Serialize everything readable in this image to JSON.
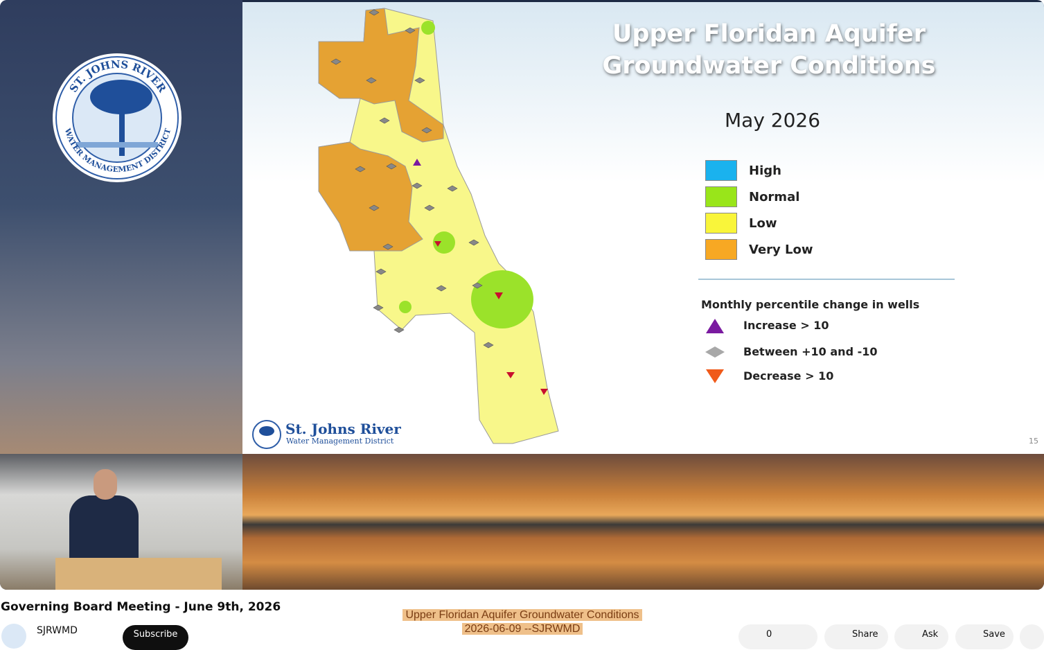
{
  "slide": {
    "title_lines": [
      "Upper Floridan Aquifer",
      "Groundwater Conditions"
    ],
    "date": "May 2026",
    "legend": [
      {
        "label": "High",
        "color": "#1ab2ee"
      },
      {
        "label": "Normal",
        "color": "#99e51a"
      },
      {
        "label": "Low",
        "color": "#f9f53a"
      },
      {
        "label": "Very Low",
        "color": "#f7a823"
      }
    ],
    "wells_title": "Monthly percentile change in wells",
    "wells": [
      "Increase > 10",
      "Between +10 and -10",
      "Decrease > 10"
    ],
    "logo_name": "St. Johns River",
    "logo_sub": "Water Management District",
    "seal_top": "ST. JOHNS RIVER",
    "seal_bottom": "WATER MANAGEMENT DISTRICT",
    "page_number": "15"
  },
  "video": {
    "title": "Governing Board Meeting - June 9th, 2026",
    "channel": "SJRWMD",
    "subscribe": "Subscribe",
    "caption": [
      "Upper Floridan Aquifer Groundwater Conditions",
      "2026-06-09 --SJRWMD"
    ],
    "actions": {
      "likes": "0",
      "share": "Share",
      "ask": "Ask",
      "save": "Save"
    }
  }
}
